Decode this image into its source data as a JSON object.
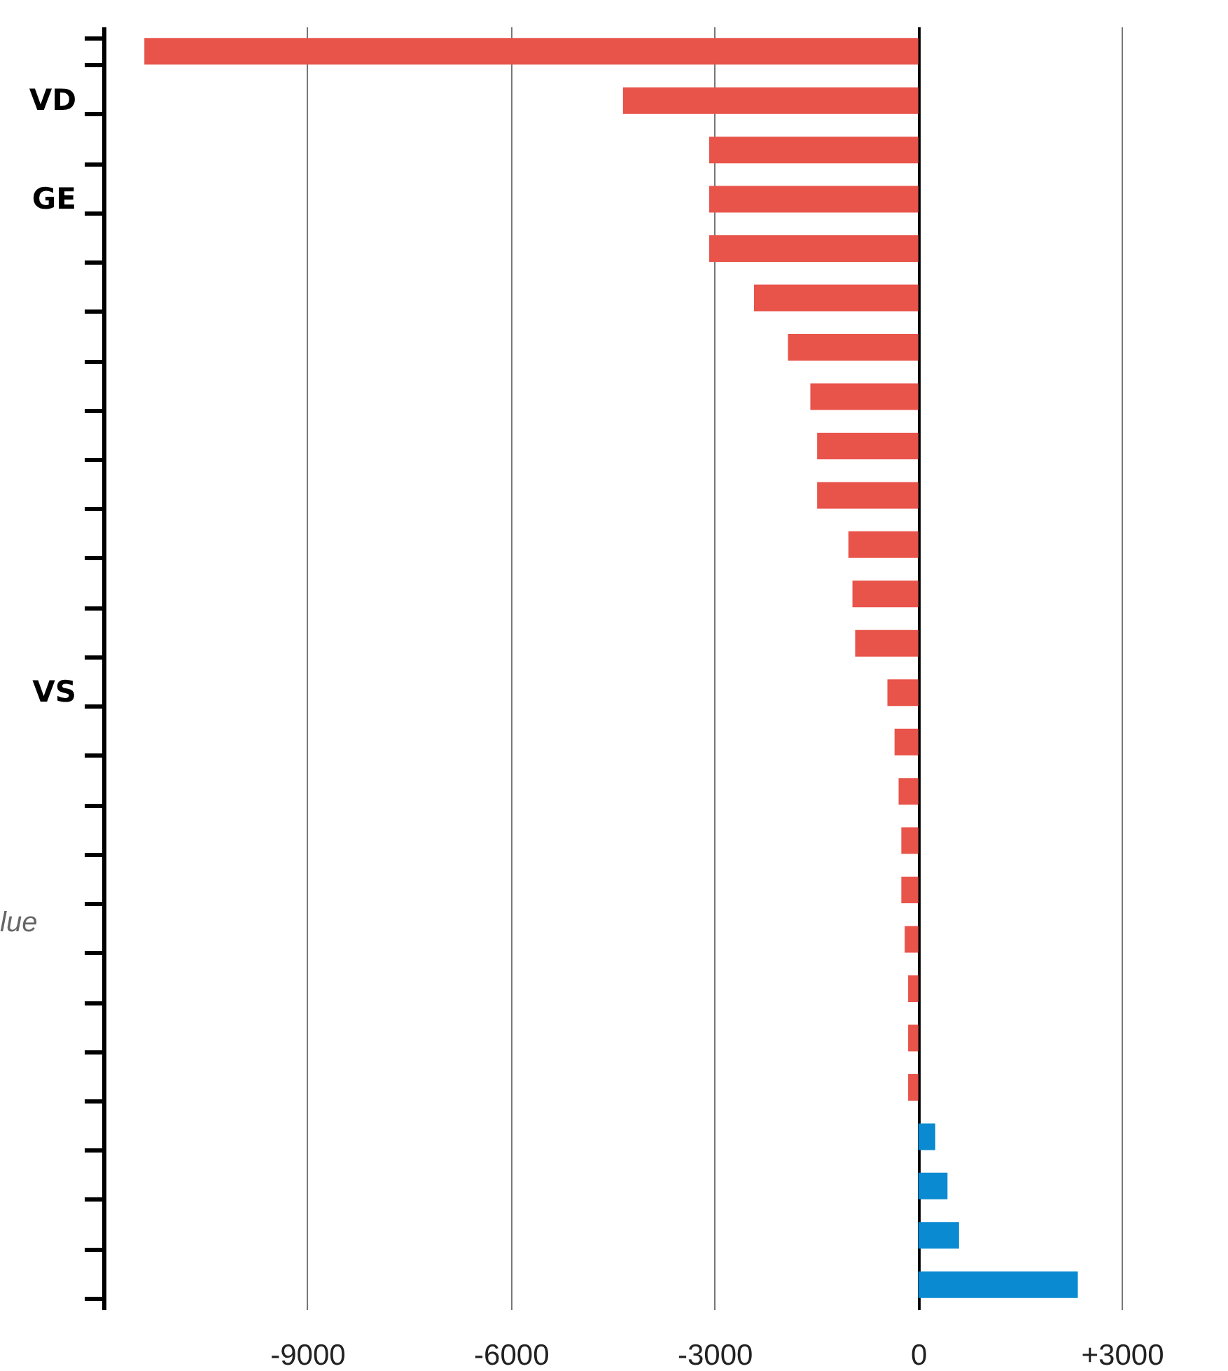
{
  "chart_data": {
    "type": "bar",
    "orientation": "horizontal",
    "categories": [
      null,
      "VD",
      null,
      "GE",
      null,
      null,
      null,
      null,
      null,
      null,
      null,
      null,
      null,
      "VS",
      null,
      null,
      null,
      null,
      null,
      null,
      null,
      null,
      null,
      null,
      null,
      null
    ],
    "values": [
      -11400,
      -4350,
      -3080,
      -3080,
      -3080,
      -2420,
      -1920,
      -1590,
      -1490,
      -1490,
      -1030,
      -970,
      -930,
      -455,
      -350,
      -290,
      -250,
      -250,
      -200,
      -150,
      -150,
      -150,
      250,
      430,
      600,
      2350
    ],
    "colors": [
      "#e8534a",
      "#e8534a",
      "#e8534a",
      "#e8534a",
      "#e8534a",
      "#e8534a",
      "#e8534a",
      "#e8534a",
      "#e8534a",
      "#e8534a",
      "#e8534a",
      "#e8534a",
      "#e8534a",
      "#e8534a",
      "#e8534a",
      "#e8534a",
      "#e8534a",
      "#e8534a",
      "#e8534a",
      "#e8534a",
      "#e8534a",
      "#e8534a",
      "#0a8ad0",
      "#0a8ad0",
      "#0a8ad0",
      "#0a8ad0"
    ],
    "xlim": [
      -12000,
      4500
    ],
    "xticks": [
      -9000,
      -6000,
      -3000,
      0,
      {
        "value": 3000,
        "label": "+3000"
      }
    ],
    "grid": "x",
    "annotations": [
      "lue"
    ]
  }
}
